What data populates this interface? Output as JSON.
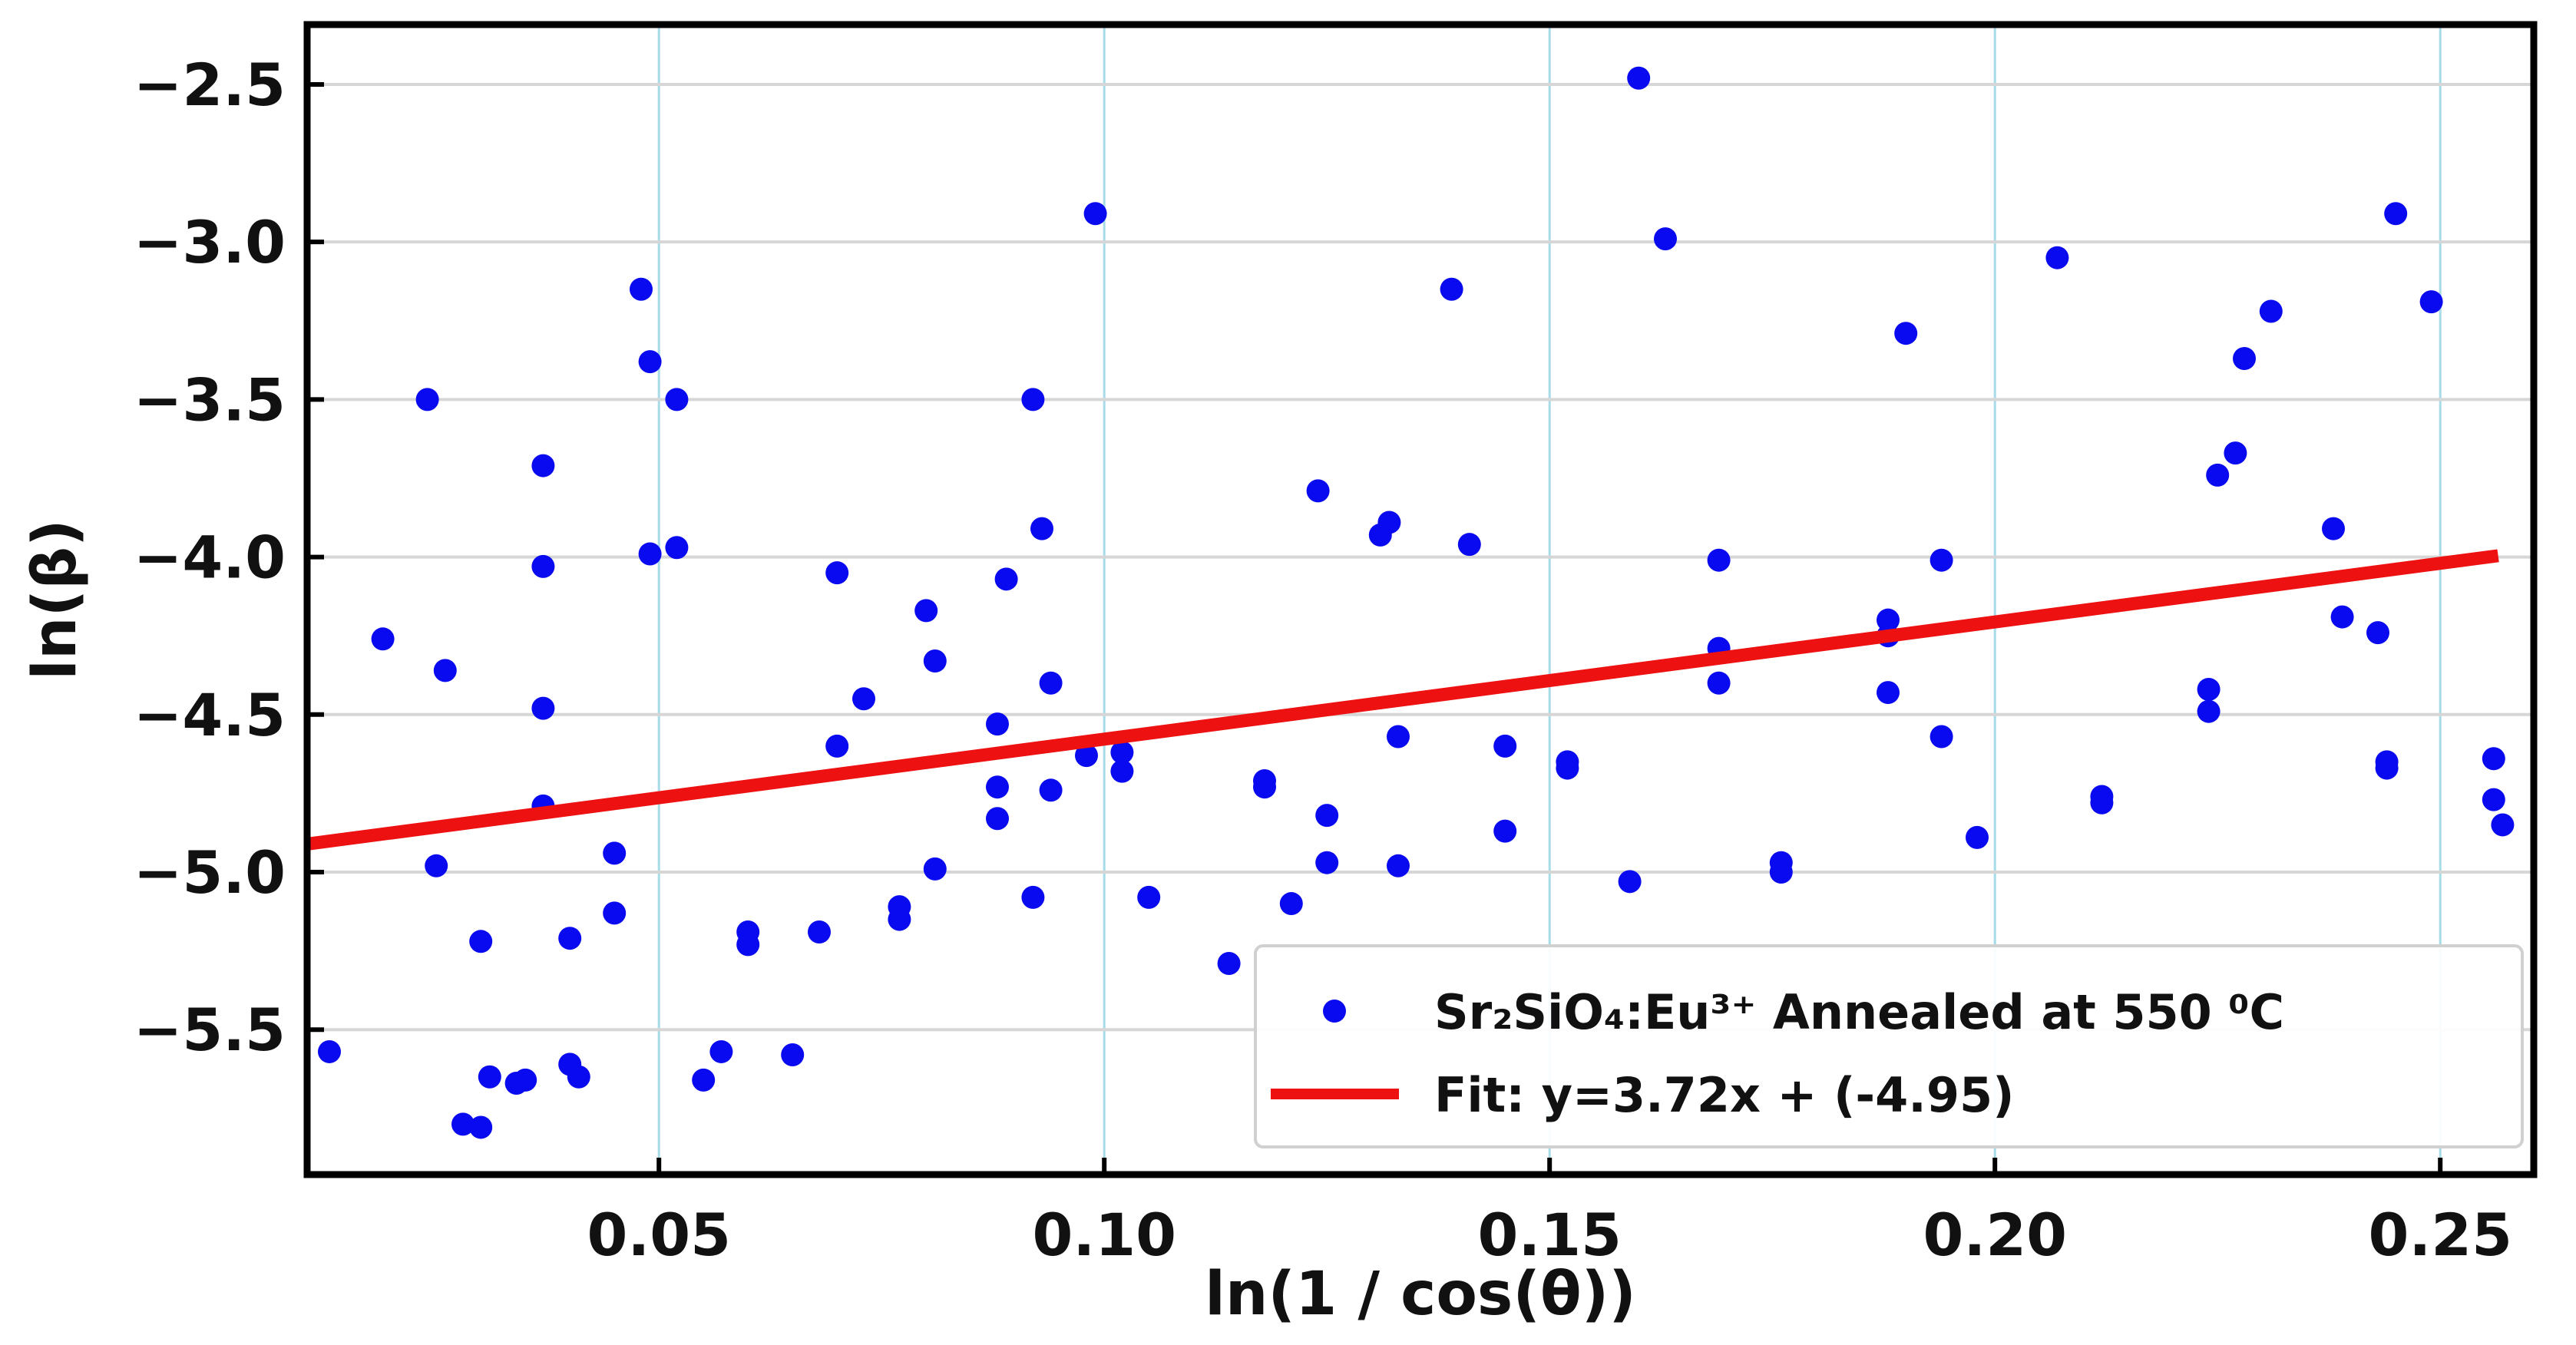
{
  "chart_data": {
    "type": "scatter",
    "title": "",
    "xlabel": "ln(1 / cos(θ))",
    "ylabel": "ln(β)",
    "xlim": [
      0.0105,
      0.2605
    ],
    "ylim": [
      -5.96,
      -2.31
    ],
    "xticks": [
      0.05,
      0.1,
      0.15,
      0.2,
      0.25
    ],
    "xtick_labels": [
      "0.05",
      "0.10",
      "0.15",
      "0.20",
      "0.25"
    ],
    "yticks": [
      -2.5,
      -3.0,
      -3.5,
      -4.0,
      -4.5,
      -5.0,
      -5.5
    ],
    "ytick_labels": [
      "−2.5",
      "−3.0",
      "−3.5",
      "−4.0",
      "−4.5",
      "−5.0",
      "−5.5"
    ],
    "grid": true,
    "legend_position": "lower-right",
    "series": [
      {
        "name": "Sr2SiO4:Eu3+ Annealed at 550 0C",
        "kind": "scatter",
        "color": "#0a0af0",
        "points": [
          [
            0.013,
            -5.57
          ],
          [
            0.019,
            -4.26
          ],
          [
            0.024,
            -3.5
          ],
          [
            0.025,
            -4.98
          ],
          [
            0.026,
            -4.36
          ],
          [
            0.028,
            -5.8
          ],
          [
            0.03,
            -5.81
          ],
          [
            0.03,
            -5.22
          ],
          [
            0.031,
            -5.65
          ],
          [
            0.034,
            -5.67
          ],
          [
            0.035,
            -5.66
          ],
          [
            0.037,
            -3.71
          ],
          [
            0.037,
            -4.03
          ],
          [
            0.037,
            -4.48
          ],
          [
            0.037,
            -4.79
          ],
          [
            0.04,
            -5.21
          ],
          [
            0.04,
            -5.61
          ],
          [
            0.041,
            -5.65
          ],
          [
            0.045,
            -4.94
          ],
          [
            0.045,
            -5.13
          ],
          [
            0.048,
            -3.15
          ],
          [
            0.049,
            -3.38
          ],
          [
            0.049,
            -3.99
          ],
          [
            0.052,
            -3.5
          ],
          [
            0.052,
            -3.97
          ],
          [
            0.055,
            -5.66
          ],
          [
            0.057,
            -5.57
          ],
          [
            0.06,
            -5.19
          ],
          [
            0.06,
            -5.23
          ],
          [
            0.065,
            -5.58
          ],
          [
            0.068,
            -5.19
          ],
          [
            0.07,
            -4.05
          ],
          [
            0.07,
            -4.6
          ],
          [
            0.073,
            -4.45
          ],
          [
            0.077,
            -5.11
          ],
          [
            0.077,
            -5.15
          ],
          [
            0.08,
            -4.17
          ],
          [
            0.081,
            -4.33
          ],
          [
            0.081,
            -4.99
          ],
          [
            0.088,
            -4.53
          ],
          [
            0.088,
            -4.73
          ],
          [
            0.088,
            -4.83
          ],
          [
            0.089,
            -4.07
          ],
          [
            0.092,
            -3.5
          ],
          [
            0.092,
            -5.08
          ],
          [
            0.093,
            -3.91
          ],
          [
            0.094,
            -4.4
          ],
          [
            0.094,
            -4.74
          ],
          [
            0.098,
            -4.63
          ],
          [
            0.099,
            -2.91
          ],
          [
            0.102,
            -4.62
          ],
          [
            0.102,
            -4.68
          ],
          [
            0.105,
            -5.08
          ],
          [
            0.114,
            -5.29
          ],
          [
            0.118,
            -4.71
          ],
          [
            0.118,
            -4.73
          ],
          [
            0.121,
            -5.1
          ],
          [
            0.124,
            -3.79
          ],
          [
            0.125,
            -4.82
          ],
          [
            0.125,
            -4.97
          ],
          [
            0.131,
            -3.93
          ],
          [
            0.132,
            -3.89
          ],
          [
            0.133,
            -4.57
          ],
          [
            0.133,
            -4.98
          ],
          [
            0.139,
            -3.15
          ],
          [
            0.141,
            -3.96
          ],
          [
            0.145,
            -4.6
          ],
          [
            0.145,
            -4.87
          ],
          [
            0.152,
            -4.65
          ],
          [
            0.152,
            -4.67
          ],
          [
            0.159,
            -5.03
          ],
          [
            0.16,
            -2.48
          ],
          [
            0.163,
            -2.99
          ],
          [
            0.169,
            -4.01
          ],
          [
            0.169,
            -4.29
          ],
          [
            0.169,
            -4.4
          ],
          [
            0.176,
            -4.97
          ],
          [
            0.176,
            -5.0
          ],
          [
            0.188,
            -4.2
          ],
          [
            0.188,
            -4.25
          ],
          [
            0.188,
            -4.43
          ],
          [
            0.19,
            -3.29
          ],
          [
            0.194,
            -4.01
          ],
          [
            0.194,
            -4.57
          ],
          [
            0.198,
            -4.89
          ],
          [
            0.207,
            -3.05
          ],
          [
            0.212,
            -4.76
          ],
          [
            0.212,
            -4.78
          ],
          [
            0.224,
            -4.42
          ],
          [
            0.224,
            -4.49
          ],
          [
            0.225,
            -3.74
          ],
          [
            0.227,
            -3.67
          ],
          [
            0.228,
            -3.37
          ],
          [
            0.231,
            -3.22
          ],
          [
            0.238,
            -3.91
          ],
          [
            0.239,
            -4.19
          ],
          [
            0.243,
            -4.24
          ],
          [
            0.244,
            -4.65
          ],
          [
            0.244,
            -4.67
          ],
          [
            0.245,
            -2.91
          ],
          [
            0.249,
            -3.19
          ],
          [
            0.256,
            -4.64
          ],
          [
            0.256,
            -4.77
          ],
          [
            0.257,
            -4.85
          ]
        ]
      },
      {
        "name": "Fit: y=3.72x + (-4.95)",
        "kind": "line",
        "color": "#ee1111",
        "slope": 3.72,
        "intercept": -4.95,
        "x": [
          0.0105,
          0.2565
        ]
      }
    ],
    "legend": {
      "entries": [
        {
          "marker": "dot",
          "color": "#0a0af0",
          "text": "Sr₂SiO₄:Eu³⁺ Annealed at 550 ⁰C"
        },
        {
          "marker": "line",
          "color": "#ee1111",
          "text": "Fit: y=3.72x + (-4.95)"
        }
      ]
    }
  }
}
